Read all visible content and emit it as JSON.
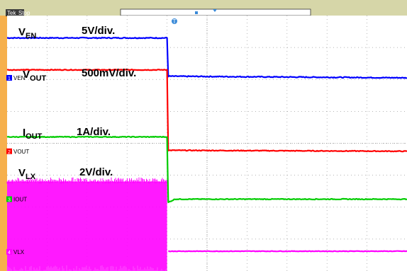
{
  "scope": {
    "brand": "Tek",
    "status": "Stop",
    "trigger_marker": "T",
    "colors": {
      "frame": "#f6b04c",
      "header": "#d6d6a8",
      "grid": "#9a9a9a",
      "ch1": "#0000ff",
      "ch2": "#ff0000",
      "ch3": "#00cc00",
      "ch4": "#ff00ff"
    }
  },
  "chart_data": {
    "type": "line",
    "x_divisions": 10,
    "y_divisions": 8,
    "grid": true,
    "trigger_x_div": 4.0,
    "series": [
      {
        "name": "VEN",
        "ref_tag": "1",
        "ref_div": 6.05,
        "color": "#0000ff",
        "label_main": "V",
        "label_sub": "EN",
        "scale": "5V/div.",
        "points": [
          [
            0,
            7.3
          ],
          [
            4.0,
            7.3
          ],
          [
            4.03,
            6.1
          ],
          [
            10,
            6.05
          ]
        ],
        "noise": 0.015
      },
      {
        "name": "VOUT",
        "ref_tag": "2",
        "ref_div": 3.75,
        "color": "#ff0000",
        "label_main": "V",
        "label_sub": "OUT",
        "scale": "500mV/div.",
        "points": [
          [
            0,
            6.3
          ],
          [
            4.0,
            6.3
          ],
          [
            4.03,
            3.78
          ],
          [
            10,
            3.75
          ]
        ],
        "noise": 0.012
      },
      {
        "name": "IOUT",
        "ref_tag": "3",
        "ref_div": 2.25,
        "color": "#00cc00",
        "label_main": "I",
        "label_sub": "OUT",
        "scale": "1A/div.",
        "points": [
          [
            0,
            4.2
          ],
          [
            4.0,
            4.2
          ],
          [
            4.03,
            2.15
          ],
          [
            4.2,
            2.25
          ],
          [
            10,
            2.25
          ]
        ],
        "noise": 0.012
      },
      {
        "name": "VLX",
        "ref_tag": "4",
        "ref_div": 0.6,
        "color": "#ff00ff",
        "label_main": "V",
        "label_sub": "LX",
        "scale": "2V/div.",
        "points": [
          [
            4.03,
            0.62
          ],
          [
            10,
            0.62
          ]
        ],
        "switching": {
          "x_start": 0,
          "x_end": 4.0,
          "low": 0.0,
          "high": 2.8
        },
        "noise": 0.008
      }
    ]
  }
}
